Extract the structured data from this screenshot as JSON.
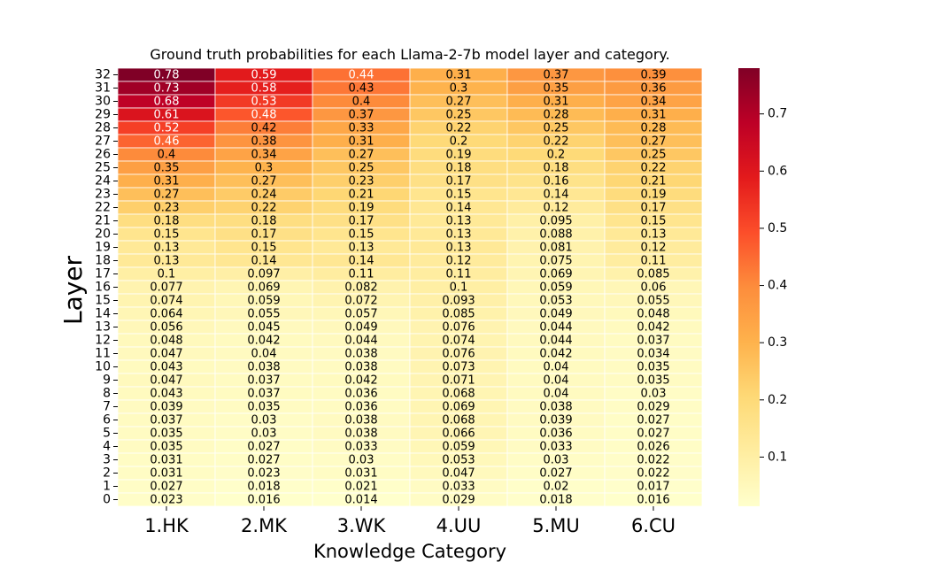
{
  "chart_data": {
    "type": "heatmap",
    "title": "Ground truth probabilities for each Llama-2-7b model layer and category.",
    "xlabel": "Knowledge Category",
    "ylabel": "Layer",
    "categories": [
      "1.HK",
      "2.MK",
      "3.WK",
      "4.UU",
      "5.MU",
      "6.CU"
    ],
    "layers": [
      "32",
      "31",
      "30",
      "29",
      "28",
      "27",
      "26",
      "25",
      "24",
      "23",
      "22",
      "21",
      "20",
      "19",
      "18",
      "17",
      "16",
      "15",
      "14",
      "13",
      "12",
      "11",
      "10",
      "9",
      "8",
      "7",
      "6",
      "5",
      "4",
      "3",
      "2",
      "1",
      "0"
    ],
    "values": [
      [
        "0.78",
        "0.59",
        "0.44",
        "0.31",
        "0.37",
        "0.39"
      ],
      [
        "0.73",
        "0.58",
        "0.43",
        "0.3",
        "0.35",
        "0.36"
      ],
      [
        "0.68",
        "0.53",
        "0.4",
        "0.27",
        "0.31",
        "0.34"
      ],
      [
        "0.61",
        "0.48",
        "0.37",
        "0.25",
        "0.28",
        "0.31"
      ],
      [
        "0.52",
        "0.42",
        "0.33",
        "0.22",
        "0.25",
        "0.28"
      ],
      [
        "0.46",
        "0.38",
        "0.31",
        "0.2",
        "0.22",
        "0.27"
      ],
      [
        "0.4",
        "0.34",
        "0.27",
        "0.19",
        "0.2",
        "0.25"
      ],
      [
        "0.35",
        "0.3",
        "0.25",
        "0.18",
        "0.18",
        "0.22"
      ],
      [
        "0.31",
        "0.27",
        "0.23",
        "0.17",
        "0.16",
        "0.21"
      ],
      [
        "0.27",
        "0.24",
        "0.21",
        "0.15",
        "0.14",
        "0.19"
      ],
      [
        "0.23",
        "0.22",
        "0.19",
        "0.14",
        "0.12",
        "0.17"
      ],
      [
        "0.18",
        "0.18",
        "0.17",
        "0.13",
        "0.095",
        "0.15"
      ],
      [
        "0.15",
        "0.17",
        "0.15",
        "0.13",
        "0.088",
        "0.13"
      ],
      [
        "0.13",
        "0.15",
        "0.13",
        "0.13",
        "0.081",
        "0.12"
      ],
      [
        "0.13",
        "0.14",
        "0.14",
        "0.12",
        "0.075",
        "0.11"
      ],
      [
        "0.1",
        "0.097",
        "0.11",
        "0.11",
        "0.069",
        "0.085"
      ],
      [
        "0.077",
        "0.069",
        "0.082",
        "0.1",
        "0.059",
        "0.06"
      ],
      [
        "0.074",
        "0.059",
        "0.072",
        "0.093",
        "0.053",
        "0.055"
      ],
      [
        "0.064",
        "0.055",
        "0.057",
        "0.085",
        "0.049",
        "0.048"
      ],
      [
        "0.056",
        "0.045",
        "0.049",
        "0.076",
        "0.044",
        "0.042"
      ],
      [
        "0.048",
        "0.042",
        "0.044",
        "0.074",
        "0.044",
        "0.037"
      ],
      [
        "0.047",
        "0.04",
        "0.038",
        "0.076",
        "0.042",
        "0.034"
      ],
      [
        "0.043",
        "0.038",
        "0.038",
        "0.073",
        "0.04",
        "0.035"
      ],
      [
        "0.047",
        "0.037",
        "0.042",
        "0.071",
        "0.04",
        "0.035"
      ],
      [
        "0.043",
        "0.037",
        "0.036",
        "0.068",
        "0.04",
        "0.03"
      ],
      [
        "0.039",
        "0.035",
        "0.036",
        "0.069",
        "0.038",
        "0.029"
      ],
      [
        "0.037",
        "0.03",
        "0.038",
        "0.068",
        "0.039",
        "0.027"
      ],
      [
        "0.035",
        "0.03",
        "0.038",
        "0.066",
        "0.036",
        "0.027"
      ],
      [
        "0.035",
        "0.027",
        "0.033",
        "0.059",
        "0.033",
        "0.026"
      ],
      [
        "0.031",
        "0.027",
        "0.03",
        "0.053",
        "0.03",
        "0.022"
      ],
      [
        "0.031",
        "0.023",
        "0.031",
        "0.047",
        "0.027",
        "0.022"
      ],
      [
        "0.027",
        "0.018",
        "0.021",
        "0.033",
        "0.02",
        "0.017"
      ],
      [
        "0.023",
        "0.016",
        "0.014",
        "0.029",
        "0.018",
        "0.016"
      ]
    ],
    "colormap": "YlOrRd",
    "colorbar": {
      "vmin": 0.014,
      "vmax": 0.78,
      "ticks": [
        "0.1",
        "0.2",
        "0.3",
        "0.4",
        "0.5",
        "0.6",
        "0.7"
      ]
    },
    "grid": true
  }
}
